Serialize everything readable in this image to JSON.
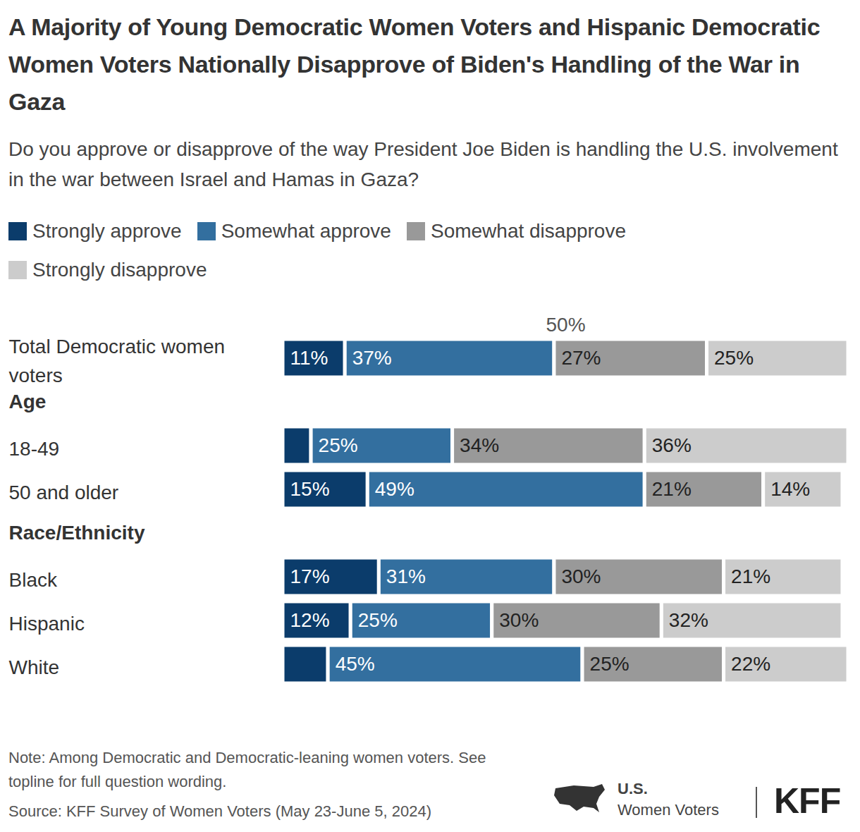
{
  "chart_data": {
    "type": "bar",
    "orientation": "horizontal",
    "stacked": true,
    "data_labels": true,
    "tick_labels": false,
    "grid": false,
    "title": "A Majority of Young Democratic Women Voters and Hispanic Democratic Women Voters Nationally Disapprove of Biden's Handling of the War in Gaza",
    "subtitle": "Do you approve or disapprove of the way President Joe Biden is handling the U.S. involvement in the war between Israel and Hamas in Gaza?",
    "categories": [
      "Total Democratic women voters",
      "Age",
      "18-49",
      "50 and older",
      "Race/Ethnicity",
      "Black",
      "Hispanic",
      "White"
    ],
    "xlim": [
      0,
      100
    ],
    "series": [
      {
        "name": "Strongly approve",
        "color": "#0b3c6b",
        "values": [
          11,
          null,
          5,
          15,
          null,
          17,
          12,
          8
        ],
        "value_labels": [
          "11%",
          null,
          null,
          "15%",
          null,
          "17%",
          "12%",
          null
        ]
      },
      {
        "name": "Somewhat approve",
        "color": "#336f9f",
        "values": [
          37,
          null,
          25,
          49,
          null,
          31,
          25,
          45
        ],
        "value_labels": [
          "37%",
          null,
          "25%",
          "49%",
          null,
          "31%",
          "25%",
          "45%"
        ]
      },
      {
        "name": "Somewhat disapprove",
        "color": "#999999",
        "values": [
          27,
          null,
          34,
          21,
          null,
          30,
          30,
          25
        ],
        "value_labels": [
          "27%",
          null,
          "34%",
          "21%",
          null,
          "30%",
          "30%",
          "25%"
        ]
      },
      {
        "name": "Strongly disapprove",
        "color": "#cccccc",
        "values": [
          25,
          null,
          36,
          14,
          null,
          21,
          32,
          22
        ],
        "value_labels": [
          "25%",
          null,
          "36%",
          "14%",
          null,
          "21%",
          "32%",
          "22%"
        ]
      }
    ],
    "annotations": [
      {
        "text": "50%",
        "x": 50
      }
    ],
    "note": "Note: Among Democratic and Democratic-leaning women voters. See topline for full question wording.",
    "source": "Source: KFF Survey of Women Voters (May 23-June 5, 2024)",
    "logo_texts": [
      "U.S.",
      "Women Voters",
      "KFF"
    ]
  }
}
